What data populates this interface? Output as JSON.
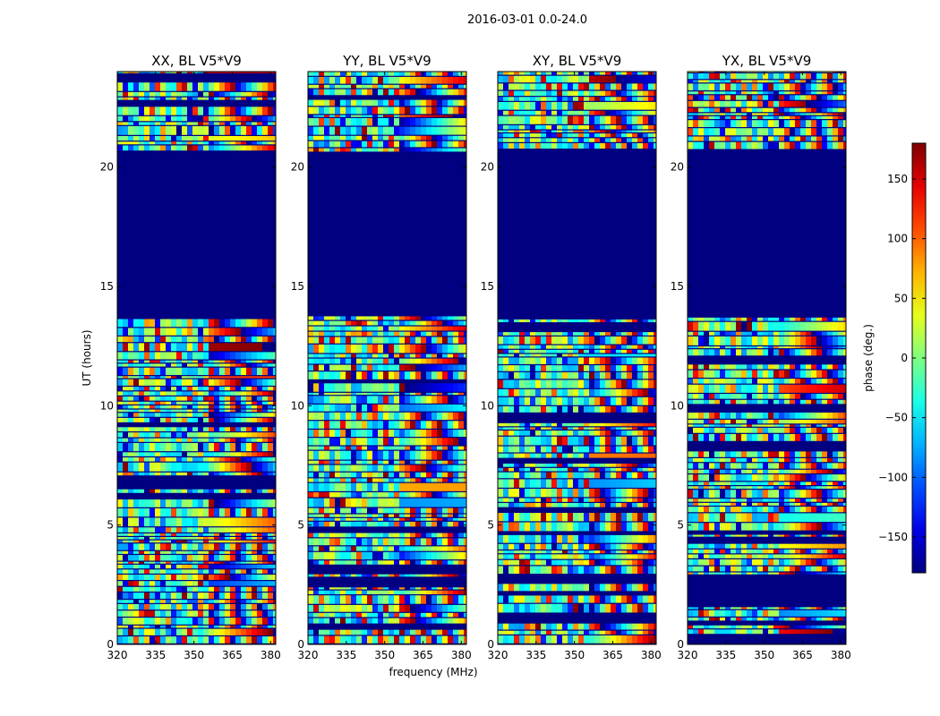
{
  "figure": {
    "suptitle": "2016-03-01 0.0-24.0",
    "xlabel": "frequency (MHz)",
    "ylabel": "UT (hours)",
    "colorbar_label": "phase (deg.)"
  },
  "chart_data": {
    "type": "heatmap",
    "colormap": "jet",
    "xlim": [
      320,
      382
    ],
    "ylim": [
      0,
      24
    ],
    "x_ticks": [
      320,
      335,
      350,
      365,
      380
    ],
    "x_tick_labels": [
      "320",
      "335",
      "350",
      "365",
      "380"
    ],
    "y_ticks": [
      0,
      5,
      10,
      15,
      20
    ],
    "y_tick_labels": [
      "0",
      "5",
      "10",
      "15",
      "20"
    ],
    "color_range": [
      -180,
      180
    ],
    "colorbar_ticks": [
      150,
      100,
      50,
      0,
      -50,
      -100,
      -150
    ],
    "colorbar_tick_labels": [
      "150",
      "100",
      "50",
      "0",
      "−50",
      "−100",
      "−150"
    ],
    "flagged_interval_ut": [
      14.0,
      20.5
    ],
    "panels": [
      {
        "title": "XX, BL V5*V9",
        "polarization": "XX",
        "baseline": "V5*V9"
      },
      {
        "title": "YY, BL V5*V9",
        "polarization": "YY",
        "baseline": "V5*V9"
      },
      {
        "title": "XY, BL V5*V9",
        "polarization": "XY",
        "baseline": "V5*V9"
      },
      {
        "title": "YX, BL V5*V9",
        "polarization": "YX",
        "baseline": "V5*V9"
      }
    ]
  }
}
